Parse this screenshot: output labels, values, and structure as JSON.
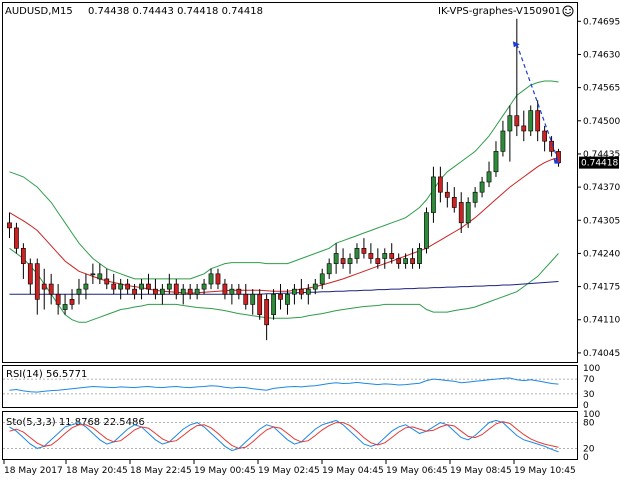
{
  "header": {
    "symbol_label": "AUDUSD,M15",
    "ohlc_text": "0.74438 0.74443 0.74418 0.74418",
    "broker_label": "IK-VPS-graphes-V150901",
    "smiley_icon": "smiley-icon"
  },
  "price_tag": "0.74418",
  "colors": {
    "bull": "#2e8b3a",
    "bear": "#cc2222",
    "bands": "#2e9d4a",
    "ma_red": "#cc2222",
    "ma_blue": "#1a237e",
    "rsi_line": "#1e88e5",
    "sto_main": "#1e88e5",
    "sto_signal": "#e53935",
    "arrow": "#1a3ed6"
  },
  "chart_data": {
    "type": "candlestick",
    "price_axis_ticks": [
      "0.74695",
      "0.74630",
      "0.74565",
      "0.74500",
      "0.74435",
      "0.74370",
      "0.74305",
      "0.74240",
      "0.74175",
      "0.74110",
      "0.74045"
    ],
    "ylim": [
      0.74035,
      0.74725
    ],
    "time_axis_ticks": [
      "18 May 2017",
      "18 May 20:45",
      "18 May 22:45",
      "19 May 00:45",
      "19 May 02:45",
      "19 May 04:45",
      "19 May 06:45",
      "19 May 08:45",
      "19 May 10:45"
    ],
    "candles": [
      [
        0.743,
        0.7432,
        0.7427,
        0.7429
      ],
      [
        0.7429,
        0.743,
        0.7424,
        0.7425
      ],
      [
        0.7425,
        0.7426,
        0.7419,
        0.7422
      ],
      [
        0.7422,
        0.7423,
        0.7416,
        0.7418
      ],
      [
        0.7422,
        0.7423,
        0.7412,
        0.7415
      ],
      [
        0.7418,
        0.7421,
        0.7413,
        0.7417
      ],
      [
        0.7418,
        0.742,
        0.7414,
        0.7416
      ],
      [
        0.7416,
        0.7418,
        0.7412,
        0.7414
      ],
      [
        0.7413,
        0.7416,
        0.7412,
        0.7414
      ],
      [
        0.7415,
        0.7417,
        0.7413,
        0.7414
      ],
      [
        0.7416,
        0.7419,
        0.7414,
        0.7417
      ],
      [
        0.7417,
        0.742,
        0.7415,
        0.7418
      ],
      [
        0.742,
        0.7422,
        0.7418,
        0.742
      ],
      [
        0.7419,
        0.7422,
        0.7418,
        0.742
      ],
      [
        0.7419,
        0.7421,
        0.7417,
        0.7418
      ],
      [
        0.7418,
        0.742,
        0.7416,
        0.7417
      ],
      [
        0.7417,
        0.7419,
        0.7415,
        0.7418
      ],
      [
        0.7418,
        0.7419,
        0.7416,
        0.7417
      ],
      [
        0.7417,
        0.7418,
        0.7415,
        0.7416
      ],
      [
        0.7417,
        0.7419,
        0.7415,
        0.7418
      ],
      [
        0.7418,
        0.742,
        0.7416,
        0.7417
      ],
      [
        0.7417,
        0.7419,
        0.7415,
        0.7416
      ],
      [
        0.7416,
        0.7418,
        0.7414,
        0.7417
      ],
      [
        0.7417,
        0.742,
        0.7416,
        0.7418
      ],
      [
        0.7418,
        0.7419,
        0.7415,
        0.7416
      ],
      [
        0.7416,
        0.7418,
        0.7414,
        0.7417
      ],
      [
        0.7417,
        0.7418,
        0.7415,
        0.7416
      ],
      [
        0.7416,
        0.7418,
        0.7415,
        0.7417
      ],
      [
        0.7417,
        0.7419,
        0.7416,
        0.7418
      ],
      [
        0.7418,
        0.7421,
        0.7417,
        0.742
      ],
      [
        0.742,
        0.7421,
        0.7417,
        0.7418
      ],
      [
        0.7418,
        0.7419,
        0.7415,
        0.7416
      ],
      [
        0.7416,
        0.7418,
        0.7414,
        0.7417
      ],
      [
        0.7417,
        0.7418,
        0.7415,
        0.7416
      ],
      [
        0.7416,
        0.7418,
        0.7413,
        0.7414
      ],
      [
        0.7414,
        0.7417,
        0.7412,
        0.7416
      ],
      [
        0.7416,
        0.7417,
        0.7411,
        0.7412
      ],
      [
        0.7415,
        0.7416,
        0.7407,
        0.741
      ],
      [
        0.7412,
        0.7417,
        0.7411,
        0.7416
      ],
      [
        0.7416,
        0.7418,
        0.7413,
        0.7415
      ],
      [
        0.7414,
        0.7417,
        0.7412,
        0.7416
      ],
      [
        0.7416,
        0.7418,
        0.7414,
        0.7417
      ],
      [
        0.7417,
        0.7419,
        0.7415,
        0.7416
      ],
      [
        0.7416,
        0.7418,
        0.7414,
        0.7417
      ],
      [
        0.7417,
        0.7419,
        0.7416,
        0.7418
      ],
      [
        0.7418,
        0.7421,
        0.7417,
        0.742
      ],
      [
        0.742,
        0.7423,
        0.7419,
        0.7422
      ],
      [
        0.7422,
        0.7426,
        0.742,
        0.7424
      ],
      [
        0.7423,
        0.7425,
        0.7421,
        0.7422
      ],
      [
        0.7422,
        0.7424,
        0.742,
        0.7423
      ],
      [
        0.7423,
        0.7426,
        0.7422,
        0.7425
      ],
      [
        0.7425,
        0.7427,
        0.7423,
        0.7424
      ],
      [
        0.7424,
        0.7426,
        0.7422,
        0.7423
      ],
      [
        0.7423,
        0.7425,
        0.7421,
        0.7422
      ],
      [
        0.7423,
        0.7425,
        0.7421,
        0.7424
      ],
      [
        0.7424,
        0.7426,
        0.7422,
        0.7423
      ],
      [
        0.7423,
        0.7424,
        0.7421,
        0.7422
      ],
      [
        0.7422,
        0.7424,
        0.7421,
        0.7423
      ],
      [
        0.7423,
        0.7425,
        0.7421,
        0.7422
      ],
      [
        0.7422,
        0.7426,
        0.7421,
        0.7425
      ],
      [
        0.7425,
        0.7433,
        0.7424,
        0.7432
      ],
      [
        0.7432,
        0.7441,
        0.743,
        0.7439
      ],
      [
        0.7439,
        0.7441,
        0.7434,
        0.7436
      ],
      [
        0.7436,
        0.7438,
        0.7433,
        0.7435
      ],
      [
        0.7435,
        0.7437,
        0.7432,
        0.7433
      ],
      [
        0.7434,
        0.7436,
        0.7428,
        0.743
      ],
      [
        0.743,
        0.7435,
        0.7429,
        0.7434
      ],
      [
        0.7434,
        0.7437,
        0.7433,
        0.7436
      ],
      [
        0.7436,
        0.7439,
        0.7435,
        0.7438
      ],
      [
        0.7438,
        0.7442,
        0.7437,
        0.744
      ],
      [
        0.744,
        0.7446,
        0.7439,
        0.7444
      ],
      [
        0.7444,
        0.745,
        0.7443,
        0.7448
      ],
      [
        0.7448,
        0.7453,
        0.7442,
        0.7451
      ],
      [
        0.7451,
        0.747,
        0.7447,
        0.7449
      ],
      [
        0.7449,
        0.7452,
        0.7446,
        0.7448
      ],
      [
        0.7448,
        0.7453,
        0.7447,
        0.7452
      ],
      [
        0.7452,
        0.7454,
        0.7446,
        0.7448
      ],
      [
        0.7448,
        0.7449,
        0.7444,
        0.7446
      ],
      [
        0.7446,
        0.7447,
        0.7443,
        0.7444
      ],
      [
        0.7444,
        0.74445,
        0.7441,
        0.74418
      ]
    ],
    "bollinger": {
      "upper": [
        0.744,
        0.74395,
        0.7439,
        0.7438,
        0.7437,
        0.74355,
        0.7434,
        0.7432,
        0.743,
        0.7428,
        0.7426,
        0.74245,
        0.7423,
        0.7422,
        0.7421,
        0.74205,
        0.742,
        0.74195,
        0.7419,
        0.7419,
        0.7419,
        0.7419,
        0.7419,
        0.7419,
        0.7419,
        0.7419,
        0.7419,
        0.74195,
        0.742,
        0.7421,
        0.74215,
        0.7422,
        0.74222,
        0.74222,
        0.74222,
        0.74222,
        0.74222,
        0.7422,
        0.7422,
        0.7422,
        0.7422,
        0.74225,
        0.7423,
        0.74235,
        0.7424,
        0.74245,
        0.7425,
        0.7426,
        0.74265,
        0.7427,
        0.74275,
        0.7428,
        0.74285,
        0.7429,
        0.74295,
        0.743,
        0.74305,
        0.7431,
        0.7432,
        0.7433,
        0.74345,
        0.74365,
        0.74385,
        0.744,
        0.7441,
        0.7442,
        0.7443,
        0.7444,
        0.74455,
        0.7447,
        0.7449,
        0.7451,
        0.7453,
        0.7455,
        0.7456,
        0.7457,
        0.74575,
        0.74578,
        0.74578,
        0.74576
      ],
      "lower": [
        0.7425,
        0.7424,
        0.7423,
        0.74215,
        0.742,
        0.7418,
        0.7416,
        0.7414,
        0.7412,
        0.7411,
        0.74105,
        0.74105,
        0.7411,
        0.74115,
        0.7412,
        0.74125,
        0.7413,
        0.74132,
        0.74135,
        0.74137,
        0.7414,
        0.7414,
        0.7414,
        0.7414,
        0.7414,
        0.74138,
        0.74136,
        0.74134,
        0.74133,
        0.74132,
        0.7413,
        0.74128,
        0.74125,
        0.74122,
        0.7412,
        0.74118,
        0.74116,
        0.74114,
        0.74113,
        0.74113,
        0.74113,
        0.74114,
        0.74115,
        0.74118,
        0.7412,
        0.74122,
        0.74125,
        0.74128,
        0.7413,
        0.74132,
        0.74134,
        0.74136,
        0.74137,
        0.74138,
        0.7414,
        0.7414,
        0.7414,
        0.7414,
        0.7414,
        0.7414,
        0.7413,
        0.74125,
        0.74125,
        0.74125,
        0.74128,
        0.7413,
        0.74132,
        0.74135,
        0.7414,
        0.74145,
        0.7415,
        0.74155,
        0.7416,
        0.74165,
        0.74175,
        0.74185,
        0.74195,
        0.7421,
        0.74225,
        0.7424
      ],
      "middle": [
        0.7432,
        0.74312,
        0.74304,
        0.74295,
        0.74285,
        0.7427,
        0.74255,
        0.7424,
        0.74225,
        0.74215,
        0.74205,
        0.742,
        0.74195,
        0.7419,
        0.74186,
        0.74183,
        0.7418,
        0.74177,
        0.74175,
        0.74173,
        0.7417,
        0.74168,
        0.74166,
        0.74165,
        0.74164,
        0.74163,
        0.74162,
        0.74163,
        0.74164,
        0.74165,
        0.74166,
        0.74167,
        0.74168,
        0.74168,
        0.74168,
        0.74168,
        0.74168,
        0.74167,
        0.74166,
        0.74166,
        0.74166,
        0.74168,
        0.7417,
        0.74172,
        0.74175,
        0.74178,
        0.74182,
        0.74186,
        0.7419,
        0.74195,
        0.742,
        0.74205,
        0.7421,
        0.74215,
        0.7422,
        0.74225,
        0.7423,
        0.74235,
        0.7424,
        0.74245,
        0.7425,
        0.74258,
        0.74266,
        0.74274,
        0.74282,
        0.7429,
        0.743,
        0.7431,
        0.74322,
        0.74334,
        0.74346,
        0.74358,
        0.7437,
        0.7438,
        0.7439,
        0.744,
        0.7441,
        0.74418,
        0.74424,
        0.74428
      ]
    },
    "ma_blue": [
      0.7416,
      0.7416,
      0.7416,
      0.7416,
      0.7416,
      0.7416,
      0.7416,
      0.7416,
      0.7416,
      0.7416,
      0.7416,
      0.7416,
      0.7416,
      0.7416,
      0.7416,
      0.7416,
      0.7416,
      0.7416,
      0.7416,
      0.7416,
      0.7416,
      0.7416,
      0.7416,
      0.7416,
      0.7416,
      0.7416,
      0.7416,
      0.7416,
      0.7416,
      0.7416,
      0.7416,
      0.7416,
      0.7416,
      0.7416,
      0.7416,
      0.7416,
      0.7416,
      0.74161,
      0.74161,
      0.74162,
      0.74162,
      0.74163,
      0.74163,
      0.74164,
      0.74164,
      0.74165,
      0.74165,
      0.74166,
      0.74166,
      0.74167,
      0.74167,
      0.74168,
      0.74168,
      0.74169,
      0.74169,
      0.7417,
      0.7417,
      0.74171,
      0.74171,
      0.74172,
      0.74172,
      0.74173,
      0.74173,
      0.74174,
      0.74174,
      0.74175,
      0.74175,
      0.74176,
      0.74176,
      0.74177,
      0.74177,
      0.74178,
      0.74178,
      0.74179,
      0.7418,
      0.74181,
      0.74182,
      0.74183,
      0.74184,
      0.74185
    ],
    "rsi": {
      "label": "RSI(14) 56.5771",
      "levels_text": [
        "100",
        "70",
        "30",
        "0"
      ],
      "values": [
        40,
        42,
        38,
        36,
        35,
        37,
        39,
        40,
        42,
        44,
        46,
        48,
        50,
        49,
        48,
        47,
        49,
        48,
        47,
        49,
        50,
        48,
        47,
        49,
        50,
        48,
        47,
        49,
        50,
        52,
        51,
        48,
        46,
        48,
        47,
        44,
        42,
        40,
        45,
        47,
        49,
        50,
        49,
        51,
        52,
        55,
        58,
        60,
        58,
        59,
        61,
        59,
        57,
        55,
        57,
        56,
        54,
        55,
        57,
        59,
        66,
        70,
        68,
        66,
        64,
        60,
        62,
        64,
        66,
        68,
        70,
        72,
        73,
        68,
        66,
        68,
        65,
        62,
        58,
        56.6
      ]
    },
    "stochastic": {
      "label": "Sto(5,3,3) 11.8768 22.5486",
      "levels_text": [
        "100",
        "80",
        "20",
        "0"
      ],
      "main": [
        70,
        60,
        45,
        30,
        20,
        25,
        40,
        55,
        70,
        75,
        80,
        70,
        55,
        40,
        30,
        35,
        50,
        65,
        75,
        70,
        55,
        40,
        30,
        35,
        50,
        65,
        75,
        80,
        70,
        55,
        40,
        25,
        15,
        20,
        35,
        50,
        65,
        75,
        70,
        55,
        40,
        30,
        35,
        50,
        65,
        75,
        80,
        85,
        75,
        60,
        45,
        30,
        25,
        30,
        45,
        60,
        70,
        75,
        65,
        55,
        60,
        70,
        80,
        75,
        60,
        45,
        40,
        50,
        65,
        80,
        85,
        80,
        65,
        50,
        40,
        35,
        30,
        25,
        18,
        11.9
      ],
      "signal": [
        60,
        65,
        58,
        45,
        32,
        25,
        28,
        40,
        55,
        68,
        75,
        75,
        68,
        55,
        42,
        35,
        38,
        50,
        63,
        70,
        67,
        55,
        42,
        35,
        38,
        50,
        63,
        73,
        75,
        68,
        55,
        40,
        27,
        20,
        23,
        35,
        50,
        63,
        70,
        67,
        55,
        42,
        35,
        38,
        50,
        63,
        73,
        80,
        80,
        73,
        60,
        45,
        33,
        28,
        33,
        45,
        58,
        68,
        70,
        65,
        60,
        62,
        70,
        75,
        72,
        60,
        48,
        45,
        52,
        65,
        77,
        82,
        78,
        65,
        52,
        42,
        35,
        30,
        26,
        22.5
      ]
    },
    "arrow": {
      "from_index": 73,
      "from_value": 0.7465,
      "to_index": 79,
      "to_value": 0.7442
    }
  }
}
